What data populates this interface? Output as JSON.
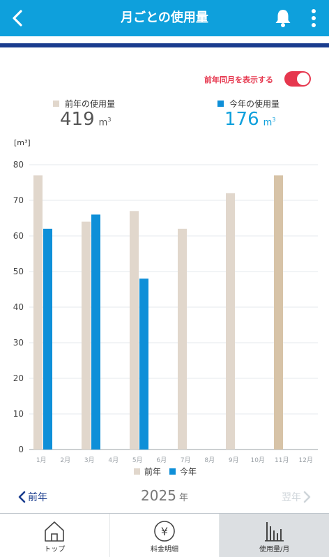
{
  "header": {
    "title": "月ごとの使用量",
    "back_icon": "chevron-left-icon",
    "bell_icon": "bell-icon",
    "more_icon": "more-vertical-icon"
  },
  "toggle": {
    "label": "前年同月を表示する",
    "on": true
  },
  "totals": {
    "previous": {
      "label": "前年の使用量",
      "value": "419",
      "unit": "m",
      "unit_sup": "3"
    },
    "current": {
      "label": "今年の使用量",
      "value": "176",
      "unit": "m",
      "unit_sup": "3"
    }
  },
  "colors": {
    "previous": "#e1d7cc",
    "previous_highlight": "#d7c3a7",
    "current": "#0e8fd8",
    "accent": "#0ea0dc",
    "toggle": "#e6374e"
  },
  "chart_data": {
    "type": "bar",
    "unit_label": "[m³]",
    "ylim": [
      0,
      80
    ],
    "yticks": [
      0,
      10,
      20,
      30,
      40,
      50,
      60,
      70,
      80
    ],
    "categories": [
      "1月",
      "2月",
      "3月",
      "4月",
      "5月",
      "6月",
      "7月",
      "8月",
      "9月",
      "10月",
      "11月",
      "12月"
    ],
    "series": [
      {
        "name": "前年",
        "values": [
          77,
          null,
          64,
          null,
          67,
          null,
          62,
          null,
          72,
          null,
          77,
          null
        ]
      },
      {
        "name": "今年",
        "values": [
          62,
          null,
          66,
          null,
          48,
          null,
          null,
          null,
          null,
          null,
          null,
          null
        ]
      }
    ],
    "highlight_category": "11月",
    "legend": "bottom",
    "grid": true
  },
  "year_nav": {
    "prev_label": "前年",
    "year": "2025",
    "year_suffix": "年",
    "next_label": "翌年"
  },
  "tabs": [
    {
      "label": "トップ",
      "icon": "home-icon",
      "active": false
    },
    {
      "label": "料金明細",
      "icon": "yen-icon",
      "active": false
    },
    {
      "label": "使用量/月",
      "icon": "bar-chart-icon",
      "active": true
    }
  ]
}
